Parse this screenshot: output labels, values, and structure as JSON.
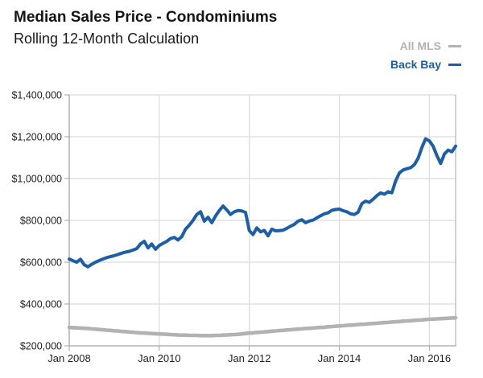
{
  "header": {
    "title": "Median Sales Price - Condominiums",
    "subtitle": "Rolling 12-Month Calculation"
  },
  "legend": {
    "items": [
      {
        "label": "All MLS",
        "color": "#b2b4b3"
      },
      {
        "label": "Back Bay",
        "color": "#1d5fa7"
      }
    ]
  },
  "chart_data": {
    "type": "line",
    "title": "Median Sales Price - Condominiums",
    "subtitle": "Rolling 12-Month Calculation",
    "x_unit": "month",
    "x_start": "Jan 2008",
    "x_end": "Aug 2016",
    "x_tick_labels": [
      "Jan 2008",
      "Jan 2010",
      "Jan 2012",
      "Jan 2014",
      "Jan 2016"
    ],
    "x_tick_month_indices": [
      0,
      24,
      48,
      72,
      96
    ],
    "y_tick_labels": [
      "$200,000",
      "$400,000",
      "$600,000",
      "$800,000",
      "$1,000,000",
      "$1,200,000",
      "$1,400,000"
    ],
    "ylim": [
      200000,
      1400000
    ],
    "grid": true,
    "legend_position": "top-right",
    "colors": {
      "grid": "#dcdcdc",
      "axis": "#a3a3a3",
      "tick_text": "#231f20"
    },
    "series": [
      {
        "name": "All MLS",
        "color": "#b2b2b2",
        "values": [
          288000,
          287000,
          286000,
          285000,
          284000,
          283000,
          281000,
          280000,
          278000,
          277000,
          275000,
          274000,
          272000,
          271000,
          269000,
          268000,
          266000,
          265000,
          263000,
          262000,
          261000,
          260000,
          259000,
          258000,
          257000,
          256000,
          255000,
          254000,
          253000,
          252000,
          251000,
          251000,
          250000,
          250000,
          250000,
          249000,
          249000,
          249000,
          249000,
          250000,
          250000,
          251000,
          252000,
          253000,
          254000,
          255000,
          257000,
          259000,
          261000,
          262000,
          264000,
          265000,
          267000,
          268000,
          270000,
          271000,
          273000,
          274000,
          276000,
          277000,
          279000,
          280000,
          281000,
          283000,
          284000,
          285000,
          287000,
          288000,
          289000,
          291000,
          292000,
          294000,
          295000,
          296000,
          298000,
          299000,
          300000,
          302000,
          303000,
          304000,
          306000,
          307000,
          308000,
          310000,
          311000,
          312000,
          314000,
          315000,
          316000,
          318000,
          319000,
          320000,
          322000,
          323000,
          324000,
          326000,
          327000,
          328000,
          329000,
          330000,
          331000,
          332000,
          333000,
          334000
        ]
      },
      {
        "name": "Back Bay",
        "color": "#1d5fa7",
        "values": [
          615000,
          607000,
          600000,
          614000,
          588000,
          578000,
          590000,
          600000,
          608000,
          615000,
          622000,
          627000,
          631000,
          637000,
          643000,
          648000,
          652000,
          658000,
          665000,
          687000,
          700000,
          668000,
          687000,
          662000,
          680000,
          690000,
          700000,
          713000,
          719000,
          706000,
          722000,
          758000,
          777000,
          800000,
          828000,
          841000,
          796000,
          815000,
          789000,
          820000,
          847000,
          869000,
          850000,
          828000,
          841000,
          847000,
          845000,
          838000,
          751000,
          732000,
          764000,
          745000,
          752000,
          726000,
          758000,
          750000,
          751000,
          753000,
          762000,
          772000,
          781000,
          796000,
          803000,
          789000,
          797000,
          801000,
          812000,
          822000,
          831000,
          836000,
          848000,
          852000,
          854000,
          846000,
          841000,
          831000,
          828000,
          839000,
          880000,
          892000,
          886000,
          901000,
          918000,
          931000,
          925000,
          937000,
          932000,
          988000,
          1027000,
          1041000,
          1047000,
          1052000,
          1066000,
          1097000,
          1149000,
          1190000,
          1180000,
          1155000,
          1110000,
          1072000,
          1117000,
          1136000,
          1128000,
          1155000
        ]
      }
    ]
  }
}
